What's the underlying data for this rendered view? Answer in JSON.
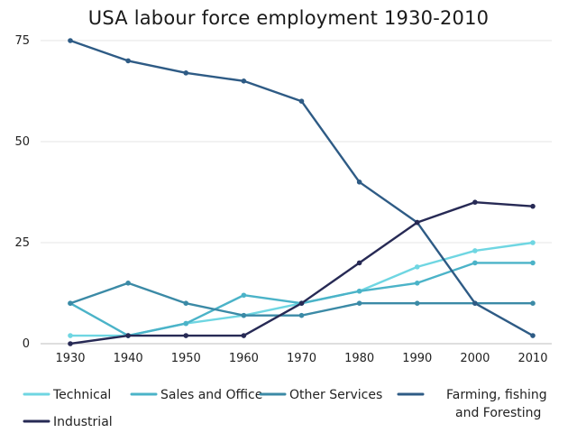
{
  "chart_data": {
    "type": "line",
    "title": "USA labour force employment 1930-2010",
    "xlabel": "",
    "ylabel": "",
    "x": [
      "1930",
      "1940",
      "1950",
      "1960",
      "1970",
      "1980",
      "1990",
      "2000",
      "2010"
    ],
    "y_ticks": [
      "0",
      "25",
      "50",
      "75"
    ],
    "ylim": [
      0,
      75
    ],
    "grid": "horizontal",
    "legend_position": "bottom",
    "series": [
      {
        "name": "Technical",
        "color": "#6fd6e2",
        "values": [
          2,
          2,
          5,
          7,
          10,
          13,
          19,
          23,
          25
        ]
      },
      {
        "name": "Sales and Office",
        "color": "#4bb3c8",
        "values": [
          10,
          2,
          5,
          12,
          10,
          13,
          15,
          20,
          20
        ]
      },
      {
        "name": "Other Services",
        "color": "#3b8aa6",
        "values": [
          10,
          15,
          10,
          7,
          7,
          10,
          10,
          10,
          10
        ]
      },
      {
        "name": "Farming, fishing and Foresting",
        "color": "#2e5b85",
        "values": [
          75,
          70,
          67,
          65,
          60,
          40,
          30,
          10,
          2
        ]
      },
      {
        "name": "Industrial",
        "color": "#272a55",
        "values": [
          0,
          2,
          2,
          2,
          10,
          20,
          30,
          35,
          34
        ]
      }
    ]
  }
}
